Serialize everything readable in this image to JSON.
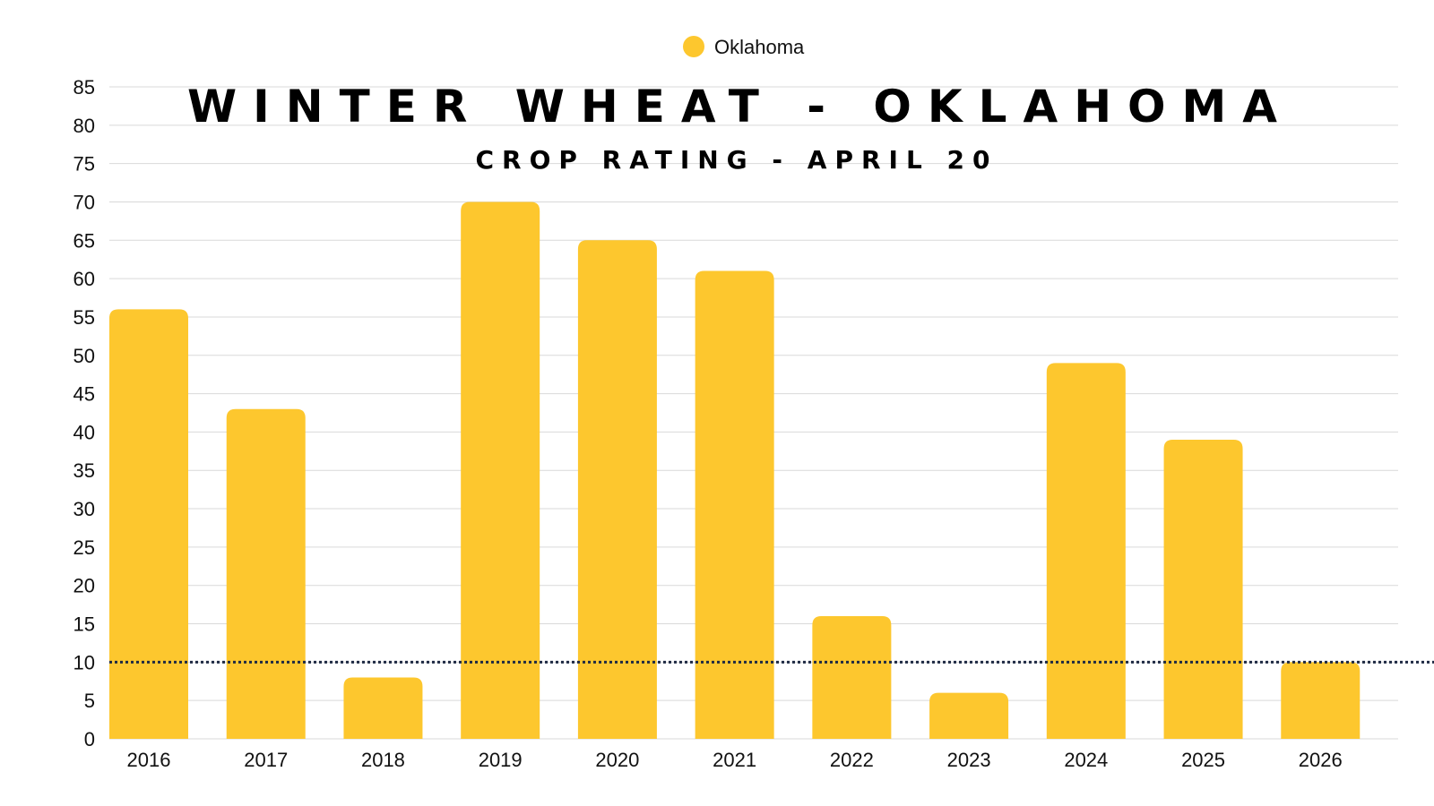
{
  "colors": {
    "bar": "#fdc72e",
    "grid": "#d9d9d9",
    "reference_line": "#1f2a44",
    "text": "#111111"
  },
  "chart_data": {
    "type": "bar",
    "title": "WINTER WHEAT - OKLAHOMA",
    "subtitle": "CROP RATING - APRIL 20",
    "xlabel": "",
    "ylabel": "",
    "categories": [
      "2016",
      "2017",
      "2018",
      "2019",
      "2020",
      "2021",
      "2022",
      "2023",
      "2024",
      "2025",
      "2026"
    ],
    "series": [
      {
        "name": "Oklahoma",
        "values": [
          56,
          43,
          8,
          70,
          65,
          61,
          16,
          6,
          49,
          39,
          10
        ]
      }
    ],
    "ylim": [
      0,
      85
    ],
    "yticks": [
      0,
      5,
      10,
      15,
      20,
      25,
      30,
      35,
      40,
      45,
      50,
      55,
      60,
      65,
      70,
      75,
      80,
      85
    ],
    "reference_line": {
      "y": 10,
      "style": "dotted"
    },
    "grid": true,
    "legend": "top-center"
  }
}
